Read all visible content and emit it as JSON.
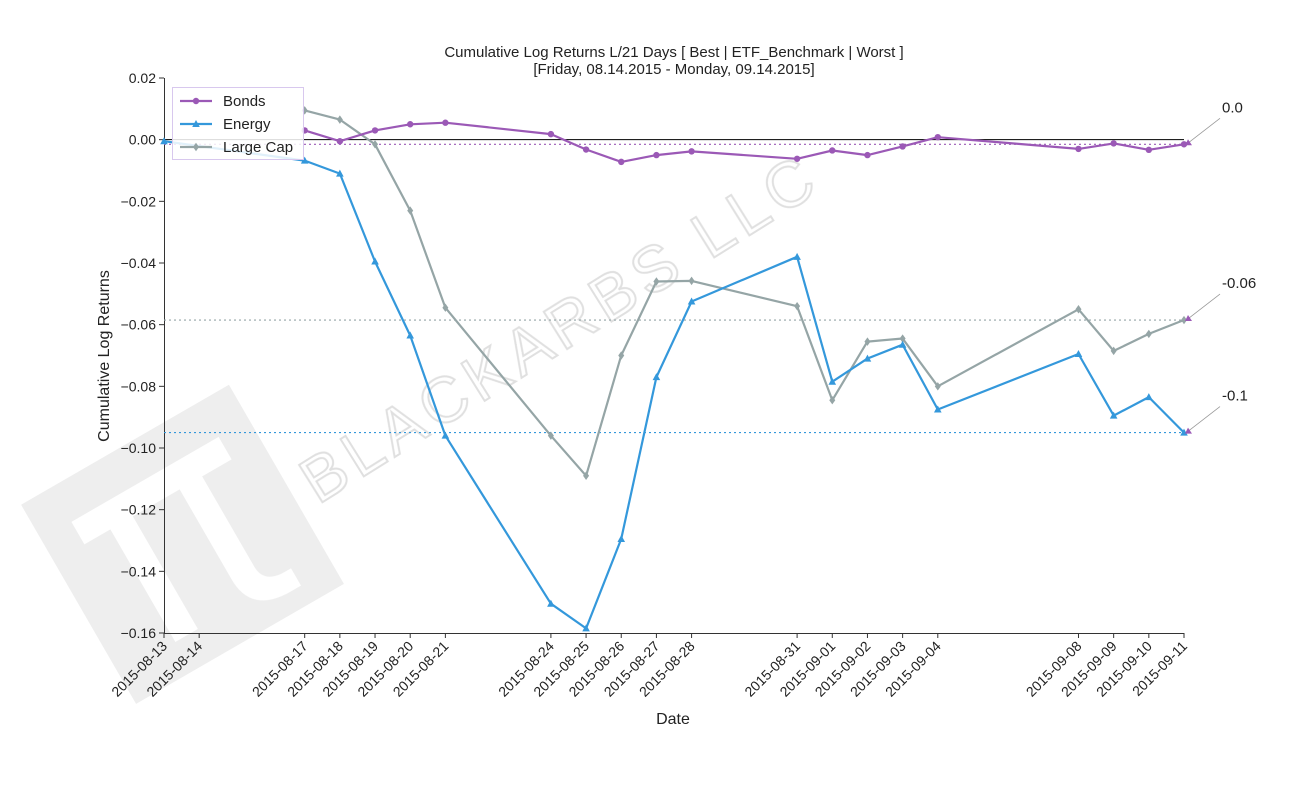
{
  "watermark": {
    "text": "BLACKARBS LLC",
    "logo": "pi-logo-icon"
  },
  "chart_data": {
    "type": "line",
    "title": "Cumulative Log Returns L/21 Days [ Best | ETF_Benchmark | Worst ]",
    "subtitle": "[Friday, 08.14.2015 - Monday, 09.14.2015]",
    "xlabel": "Date",
    "ylabel": "Cumulative Log Returns",
    "ylim": [
      -0.16,
      0.02
    ],
    "yticks": [
      0.02,
      0.0,
      -0.02,
      -0.04,
      -0.06,
      -0.08,
      -0.1,
      -0.12,
      -0.14,
      -0.16
    ],
    "ytick_labels": [
      "0.02",
      "0.00",
      "−0.02",
      "−0.04",
      "−0.06",
      "−0.08",
      "−0.10",
      "−0.12",
      "−0.14",
      "−0.16"
    ],
    "grid": false,
    "legend_position": "top-left",
    "x": [
      "2015-08-13",
      "2015-08-14",
      "2015-08-17",
      "2015-08-18",
      "2015-08-19",
      "2015-08-20",
      "2015-08-21",
      "2015-08-24",
      "2015-08-25",
      "2015-08-26",
      "2015-08-27",
      "2015-08-28",
      "2015-08-31",
      "2015-09-01",
      "2015-09-02",
      "2015-09-03",
      "2015-09-04",
      "2015-09-08",
      "2015-09-09",
      "2015-09-10",
      "2015-09-11"
    ],
    "series": [
      {
        "name": "Bonds",
        "color": "#9b59b6",
        "marker": "circle",
        "points": [
          [
            "2015-08-17",
            0.003
          ],
          [
            "2015-08-18",
            -0.0005
          ],
          [
            "2015-08-19",
            0.003
          ],
          [
            "2015-08-20",
            0.005
          ],
          [
            "2015-08-21",
            0.0055
          ],
          [
            "2015-08-24",
            0.0018
          ],
          [
            "2015-08-25",
            -0.0032
          ],
          [
            "2015-08-26",
            -0.0072
          ],
          [
            "2015-08-27",
            -0.005
          ],
          [
            "2015-08-28",
            -0.0038
          ],
          [
            "2015-08-31",
            -0.0062
          ],
          [
            "2015-09-01",
            -0.0035
          ],
          [
            "2015-09-02",
            -0.005
          ],
          [
            "2015-09-03",
            -0.0022
          ],
          [
            "2015-09-04",
            0.0008
          ],
          [
            "2015-09-08",
            -0.003
          ],
          [
            "2015-09-09",
            -0.0012
          ],
          [
            "2015-09-10",
            -0.0033
          ],
          [
            "2015-09-11",
            -0.0015
          ]
        ]
      },
      {
        "name": "Energy",
        "color": "#3498db",
        "marker": "triangle",
        "points": [
          [
            "2015-08-13",
            -0.0005
          ],
          [
            "2015-08-17",
            -0.0068
          ],
          [
            "2015-08-18",
            -0.011
          ],
          [
            "2015-08-19",
            -0.0395
          ],
          [
            "2015-08-20",
            -0.0635
          ],
          [
            "2015-08-21",
            -0.096
          ],
          [
            "2015-08-24",
            -0.1505
          ],
          [
            "2015-08-25",
            -0.1585
          ],
          [
            "2015-08-26",
            -0.1295
          ],
          [
            "2015-08-27",
            -0.077
          ],
          [
            "2015-08-28",
            -0.0525
          ],
          [
            "2015-08-31",
            -0.038
          ],
          [
            "2015-09-01",
            -0.0785
          ],
          [
            "2015-09-02",
            -0.071
          ],
          [
            "2015-09-03",
            -0.0665
          ],
          [
            "2015-09-04",
            -0.0875
          ],
          [
            "2015-09-08",
            -0.0695
          ],
          [
            "2015-09-09",
            -0.0895
          ],
          [
            "2015-09-10",
            -0.0835
          ],
          [
            "2015-09-11",
            -0.095
          ]
        ]
      },
      {
        "name": "Large Cap",
        "color": "#95a5a6",
        "marker": "diamond",
        "points": [
          [
            "2015-08-17",
            0.0095
          ],
          [
            "2015-08-18",
            0.0065
          ],
          [
            "2015-08-19",
            -0.0015
          ],
          [
            "2015-08-20",
            -0.023
          ],
          [
            "2015-08-21",
            -0.0545
          ],
          [
            "2015-08-24",
            -0.096
          ],
          [
            "2015-08-25",
            -0.109
          ],
          [
            "2015-08-26",
            -0.07
          ],
          [
            "2015-08-27",
            -0.046
          ],
          [
            "2015-08-28",
            -0.0458
          ],
          [
            "2015-08-31",
            -0.054
          ],
          [
            "2015-09-01",
            -0.0845
          ],
          [
            "2015-09-02",
            -0.0655
          ],
          [
            "2015-09-03",
            -0.0645
          ],
          [
            "2015-09-04",
            -0.08
          ],
          [
            "2015-09-08",
            -0.055
          ],
          [
            "2015-09-09",
            -0.0685
          ],
          [
            "2015-09-10",
            -0.063
          ],
          [
            "2015-09-11",
            -0.0585
          ]
        ]
      }
    ],
    "reference_lines": [
      {
        "y": 0.0,
        "color": "#000000",
        "style": "solid"
      },
      {
        "y": -0.0015,
        "color": "#9b59b6",
        "style": "dotted"
      },
      {
        "y": -0.0585,
        "color": "#95a5a6",
        "style": "dotted"
      },
      {
        "y": -0.095,
        "color": "#3498db",
        "style": "dotted"
      }
    ],
    "annotations": [
      {
        "text": "0.0",
        "target_y": -0.0015
      },
      {
        "text": "-0.06",
        "target_y": -0.0585
      },
      {
        "text": "-0.1",
        "target_y": -0.095
      }
    ]
  }
}
